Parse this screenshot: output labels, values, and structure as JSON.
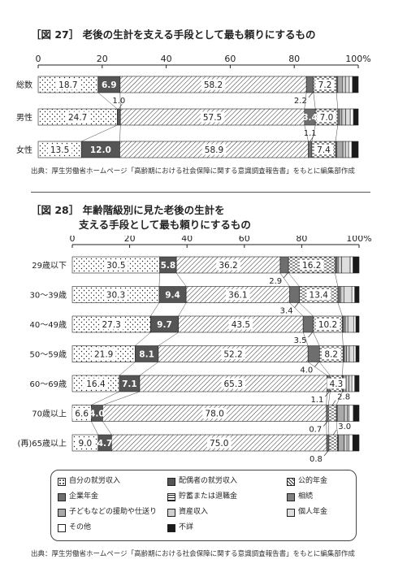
{
  "fig27": {
    "title": "［図 27］ 老後の生計を支える手段として最も頼りにするもの",
    "source": "出典：厚生労働省ホームページ「高齢期における社会保障に関する意識調査報告書」をもとに編集部作成"
  },
  "fig28": {
    "title_line1": "［図 28］ 年齢階級別に見た老後の生計を",
    "title_line2": "支える手段として最も頼りにするもの",
    "source": "出典：厚生労働省ホームページ「高齢期における社会保障に関する意識調査報告書」をもとに編集部作成"
  },
  "legend": [
    {
      "key": "work",
      "label": "自分の就労収入"
    },
    {
      "key": "spouse",
      "label": "配偶者の就労収入"
    },
    {
      "key": "public",
      "label": "公的年金"
    },
    {
      "key": "corp",
      "label": "企業年金"
    },
    {
      "key": "savings",
      "label": "貯蓄または退職金"
    },
    {
      "key": "inherit",
      "label": "相続"
    },
    {
      "key": "children",
      "label": "子どもなどの援助や仕送り"
    },
    {
      "key": "assets",
      "label": "資産収入"
    },
    {
      "key": "private",
      "label": "個人年金"
    },
    {
      "key": "other",
      "label": "その他"
    },
    {
      "key": "unknown",
      "label": "不詳"
    }
  ],
  "colors": {
    "spouse": "#555555",
    "corp": "#6e6e6e",
    "inherit": "#808080",
    "children": "#a9a9a9",
    "assets": "#d0d0d0",
    "private": "#dedede",
    "other": "#ffffff",
    "unknown": "#1a1a1a"
  },
  "chart_data": [
    {
      "type": "bar",
      "orientation": "horizontal-stacked",
      "xlim": [
        0,
        100
      ],
      "ticks": [
        "0",
        "20",
        "40",
        "60",
        "80",
        "100%"
      ],
      "categories": [
        "総数",
        "男性",
        "女性"
      ],
      "series": [
        {
          "key": "work",
          "name": "自分の就労収入",
          "values": [
            18.7,
            24.7,
            13.5
          ]
        },
        {
          "key": "spouse",
          "name": "配偶者の就労収入",
          "values": [
            6.9,
            1.0,
            12.0
          ]
        },
        {
          "key": "public",
          "name": "公的年金",
          "values": [
            58.2,
            57.5,
            58.9
          ]
        },
        {
          "key": "corp",
          "name": "企業年金",
          "values": [
            2.2,
            3.4,
            1.1
          ]
        },
        {
          "key": "savings",
          "name": "貯蓄または退職金",
          "values": [
            7.2,
            7.0,
            7.4
          ]
        },
        {
          "key": "inherit",
          "name": "相続",
          "values": [
            0.4,
            0.4,
            0.4
          ]
        },
        {
          "key": "children",
          "name": "子どもなどの援助や仕送り",
          "values": [
            1.4,
            0.9,
            1.9
          ]
        },
        {
          "key": "assets",
          "name": "資産収入",
          "values": [
            1.0,
            1.2,
            0.8
          ]
        },
        {
          "key": "private",
          "name": "個人年金",
          "values": [
            1.2,
            1.4,
            1.0
          ]
        },
        {
          "key": "other",
          "name": "その他",
          "values": [
            1.0,
            1.0,
            1.0
          ]
        },
        {
          "key": "unknown",
          "name": "不詳",
          "values": [
            1.8,
            1.5,
            2.0
          ]
        }
      ],
      "labels": [
        {
          "row": 0,
          "series": "work",
          "text": "18.7"
        },
        {
          "row": 0,
          "series": "spouse",
          "text": "6.9"
        },
        {
          "row": 0,
          "series": "public",
          "text": "58.2"
        },
        {
          "row": 0,
          "series": "savings",
          "text": "7.2"
        },
        {
          "row": 0,
          "series": "corp",
          "text": "2.2",
          "callout": "below"
        },
        {
          "row": 1,
          "series": "work",
          "text": "24.7"
        },
        {
          "row": 1,
          "series": "spouse",
          "text": "1.0",
          "callout": "above"
        },
        {
          "row": 1,
          "series": "public",
          "text": "57.5"
        },
        {
          "row": 1,
          "series": "corp",
          "text": "3.4"
        },
        {
          "row": 1,
          "series": "savings",
          "text": "7.0"
        },
        {
          "row": 2,
          "series": "corp",
          "text": "1.1",
          "callout": "above"
        },
        {
          "row": 2,
          "series": "work",
          "text": "13.5"
        },
        {
          "row": 2,
          "series": "spouse",
          "text": "12.0"
        },
        {
          "row": 2,
          "series": "public",
          "text": "58.9"
        },
        {
          "row": 2,
          "series": "savings",
          "text": "7.4"
        }
      ]
    },
    {
      "type": "bar",
      "orientation": "horizontal-stacked",
      "xlim": [
        0,
        100
      ],
      "ticks": [
        "0",
        "20",
        "40",
        "60",
        "80",
        "100%"
      ],
      "categories": [
        "29歳以下",
        "30～39歳",
        "40～49歳",
        "50～59歳",
        "60～69歳",
        "70歳以上",
        "(再)65歳以上"
      ],
      "series": [
        {
          "key": "work",
          "name": "自分の就労収入",
          "values": [
            30.5,
            30.3,
            27.3,
            21.9,
            16.4,
            6.6,
            9.0
          ]
        },
        {
          "key": "spouse",
          "name": "配偶者の就労収入",
          "values": [
            5.8,
            9.4,
            9.7,
            8.1,
            7.1,
            4.0,
            4.7
          ]
        },
        {
          "key": "public",
          "name": "公的年金",
          "values": [
            36.2,
            36.1,
            43.5,
            52.2,
            65.3,
            78.0,
            75.0
          ]
        },
        {
          "key": "corp",
          "name": "企業年金",
          "values": [
            2.9,
            3.4,
            3.5,
            4.0,
            1.1,
            0.7,
            0.8
          ]
        },
        {
          "key": "savings",
          "name": "貯蓄または退職金",
          "values": [
            16.2,
            13.4,
            10.2,
            8.2,
            4.3,
            2.8,
            3.0
          ]
        },
        {
          "key": "inherit",
          "name": "相続",
          "values": [
            0.6,
            0.5,
            0.4,
            0.4,
            0.3,
            0.3,
            0.3
          ]
        },
        {
          "key": "children",
          "name": "子どもなどの援助や仕送り",
          "values": [
            0.5,
            0.5,
            0.6,
            0.8,
            1.0,
            2.5,
            2.0
          ]
        },
        {
          "key": "assets",
          "name": "資産収入",
          "values": [
            1.2,
            1.1,
            0.9,
            1.0,
            1.0,
            1.0,
            1.0
          ]
        },
        {
          "key": "private",
          "name": "個人年金",
          "values": [
            3.0,
            2.8,
            2.0,
            1.5,
            1.0,
            0.6,
            0.7
          ]
        },
        {
          "key": "other",
          "name": "その他",
          "values": [
            1.0,
            1.0,
            0.8,
            0.8,
            1.0,
            1.5,
            1.3
          ]
        },
        {
          "key": "unknown",
          "name": "不詳",
          "values": [
            2.1,
            1.5,
            1.1,
            1.1,
            1.5,
            2.0,
            2.2
          ]
        }
      ],
      "labels": [
        {
          "row": 0,
          "series": "work",
          "text": "30.5"
        },
        {
          "row": 0,
          "series": "spouse",
          "text": "5.8"
        },
        {
          "row": 0,
          "series": "public",
          "text": "36.2"
        },
        {
          "row": 0,
          "series": "savings",
          "text": "16.2"
        },
        {
          "row": 0,
          "series": "corp",
          "text": "2.9",
          "callout": "below"
        },
        {
          "row": 1,
          "series": "work",
          "text": "30.3"
        },
        {
          "row": 1,
          "series": "spouse",
          "text": "9.4"
        },
        {
          "row": 1,
          "series": "public",
          "text": "36.1"
        },
        {
          "row": 1,
          "series": "savings",
          "text": "13.4"
        },
        {
          "row": 1,
          "series": "corp",
          "text": "3.4",
          "callout": "below"
        },
        {
          "row": 2,
          "series": "work",
          "text": "27.3"
        },
        {
          "row": 2,
          "series": "spouse",
          "text": "9.7"
        },
        {
          "row": 2,
          "series": "public",
          "text": "43.5"
        },
        {
          "row": 2,
          "series": "savings",
          "text": "10.2"
        },
        {
          "row": 2,
          "series": "corp",
          "text": "3.5",
          "callout": "below"
        },
        {
          "row": 3,
          "series": "work",
          "text": "21.9"
        },
        {
          "row": 3,
          "series": "spouse",
          "text": "8.1"
        },
        {
          "row": 3,
          "series": "public",
          "text": "52.2"
        },
        {
          "row": 3,
          "series": "savings",
          "text": "8.2"
        },
        {
          "row": 3,
          "series": "corp",
          "text": "4.0",
          "callout": "below"
        },
        {
          "row": 4,
          "series": "work",
          "text": "16.4"
        },
        {
          "row": 4,
          "series": "spouse",
          "text": "7.1"
        },
        {
          "row": 4,
          "series": "public",
          "text": "65.3"
        },
        {
          "row": 4,
          "series": "savings",
          "text": "4.3"
        },
        {
          "row": 4,
          "series": "corp",
          "text": "1.1",
          "callout": "below"
        },
        {
          "row": 5,
          "series": "savings",
          "text": "2.8",
          "callout": "above"
        },
        {
          "row": 5,
          "series": "work",
          "text": "6.6"
        },
        {
          "row": 5,
          "series": "spouse",
          "text": "4.0"
        },
        {
          "row": 5,
          "series": "public",
          "text": "78.0"
        },
        {
          "row": 5,
          "series": "corp",
          "text": "0.7",
          "callout": "below"
        },
        {
          "row": 6,
          "series": "savings",
          "text": "3.0",
          "callout": "above"
        },
        {
          "row": 6,
          "series": "work",
          "text": "9.0"
        },
        {
          "row": 6,
          "series": "spouse",
          "text": "4.7"
        },
        {
          "row": 6,
          "series": "public",
          "text": "75.0"
        },
        {
          "row": 6,
          "series": "corp",
          "text": "0.8",
          "callout": "below"
        }
      ]
    }
  ]
}
